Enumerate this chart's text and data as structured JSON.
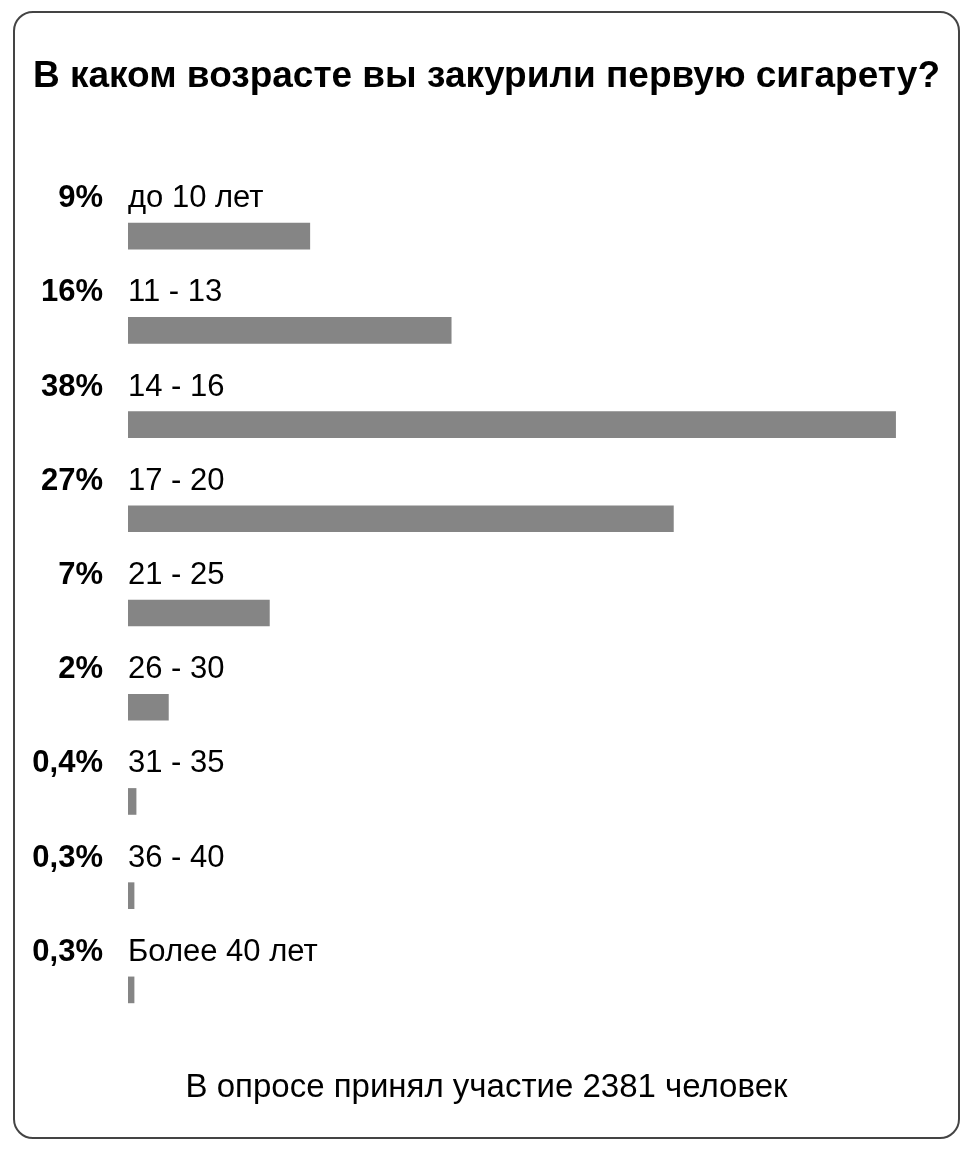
{
  "chart_data": {
    "type": "bar",
    "orientation": "horizontal",
    "title": "В каком возрасте вы закурили первую сигарету?",
    "categories": [
      "до 10 лет",
      "11 - 13",
      "14 - 16",
      "17 - 20",
      "21 - 25",
      "26 - 30",
      "31 - 35",
      "36 - 40",
      "Более 40 лет"
    ],
    "values": [
      9,
      16,
      38,
      27,
      7,
      2,
      0.4,
      0.3,
      0.3
    ],
    "value_labels": [
      "9%",
      "16%",
      "38%",
      "27%",
      "7%",
      "2%",
      "0,4%",
      "0,3%",
      "0,3%"
    ],
    "color": "#858585",
    "tick_labels": "y",
    "annotations": [
      "В опросе принял участие 2381 человек"
    ]
  }
}
